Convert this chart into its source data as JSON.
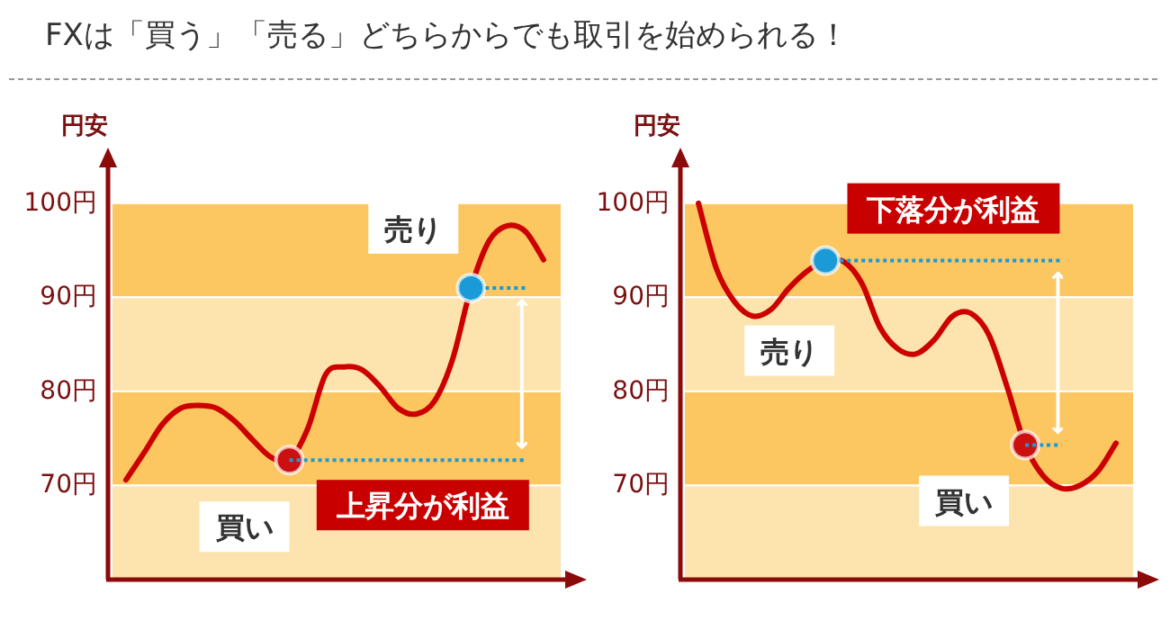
{
  "chart_data": [
    {
      "type": "line",
      "title": "FXは「買う」「売る」どちらからでも取引を始められる！",
      "ylabel": "円安",
      "tick_labels": "y",
      "categories": [
        null,
        null,
        null,
        null,
        null,
        null,
        null,
        null,
        null,
        null,
        null,
        null,
        null,
        null,
        null,
        null,
        null,
        null,
        null,
        null,
        null,
        null,
        null,
        null
      ],
      "ylim": [
        60,
        104
      ],
      "yticks": [
        {
          "value": 70,
          "label": "70円"
        },
        {
          "value": 80,
          "label": "80円"
        },
        {
          "value": 90,
          "label": "90円"
        },
        {
          "value": 100,
          "label": "100円"
        }
      ],
      "bands": [
        {
          "axis": "y",
          "from": 90,
          "to": 100,
          "color": "#fcc660"
        },
        {
          "axis": "y",
          "from": 80,
          "to": 90,
          "color": "#fde3ad"
        },
        {
          "axis": "y",
          "from": 70,
          "to": 80,
          "color": "#fcc660"
        },
        {
          "axis": "y",
          "from": 60,
          "to": 70,
          "color": "#fde3ad"
        }
      ],
      "series": [
        {
          "color": "#cc0000",
          "values": [
            70.6,
            73.5,
            76.5,
            78.2,
            78.5,
            78.2,
            76.8,
            74.8,
            73.0,
            72.7,
            76.0,
            81.8,
            82.6,
            82.3,
            80.5,
            78.2,
            77.6,
            79.0,
            83.5,
            91.0,
            96.0,
            97.6,
            97.0,
            94.0
          ]
        },
        {
          "type": "scatter",
          "color": "#cc1010",
          "values": [
            null,
            null,
            null,
            null,
            null,
            null,
            null,
            null,
            null,
            72.7,
            null,
            null,
            null,
            null,
            null,
            null,
            null,
            null,
            null,
            null,
            null,
            null,
            null,
            null
          ]
        },
        {
          "type": "scatter",
          "color": "#1a9ad6",
          "values": [
            null,
            null,
            null,
            null,
            null,
            null,
            null,
            null,
            null,
            null,
            null,
            null,
            null,
            null,
            null,
            null,
            null,
            null,
            null,
            91.0,
            null,
            null,
            null,
            null
          ]
        },
        {
          "type": "line",
          "line_style": "dotted",
          "color": "#1a9ad6",
          "values": [
            null,
            null,
            null,
            null,
            null,
            null,
            null,
            null,
            null,
            72.7,
            72.7,
            72.7,
            72.7,
            72.7,
            72.7,
            72.7,
            72.7,
            72.7,
            72.7,
            72.7,
            72.7,
            72.7,
            72.7,
            null
          ]
        },
        {
          "type": "line",
          "line_style": "dotted",
          "color": "#1a9ad6",
          "values": [
            null,
            null,
            null,
            null,
            null,
            null,
            null,
            null,
            null,
            null,
            null,
            null,
            null,
            null,
            null,
            null,
            null,
            null,
            null,
            91.0,
            91.0,
            91.0,
            91.0,
            null
          ]
        }
      ],
      "annotations": [
        "買い",
        "売り",
        "上昇分が利益"
      ]
    },
    {
      "type": "line",
      "ylabel": "円安",
      "tick_labels": "y",
      "categories": [
        null,
        null,
        null,
        null,
        null,
        null,
        null,
        null,
        null,
        null,
        null,
        null,
        null,
        null,
        null,
        null,
        null,
        null,
        null,
        null,
        null,
        null,
        null,
        null
      ],
      "ylim": [
        60,
        104
      ],
      "yticks": [
        {
          "value": 70,
          "label": "70円"
        },
        {
          "value": 80,
          "label": "80円"
        },
        {
          "value": 90,
          "label": "90円"
        },
        {
          "value": 100,
          "label": "100円"
        }
      ],
      "bands": [
        {
          "axis": "y",
          "from": 90,
          "to": 100,
          "color": "#fcc660"
        },
        {
          "axis": "y",
          "from": 80,
          "to": 90,
          "color": "#fde3ad"
        },
        {
          "axis": "y",
          "from": 70,
          "to": 80,
          "color": "#fcc660"
        },
        {
          "axis": "y",
          "from": 60,
          "to": 70,
          "color": "#fde3ad"
        }
      ],
      "series": [
        {
          "color": "#cc0000",
          "values": [
            100,
            93.0,
            89.5,
            88.0,
            88.7,
            91.0,
            92.8,
            93.9,
            93.8,
            91.5,
            86.8,
            84.5,
            84.0,
            85.5,
            88.0,
            88.3,
            86.0,
            80.5,
            74.3,
            71.0,
            69.7,
            70.0,
            71.5,
            74.5
          ]
        },
        {
          "type": "scatter",
          "color": "#1a9ad6",
          "values": [
            null,
            null,
            null,
            null,
            null,
            null,
            null,
            93.9,
            null,
            null,
            null,
            null,
            null,
            null,
            null,
            null,
            null,
            null,
            null,
            null,
            null,
            null,
            null,
            null
          ]
        },
        {
          "type": "scatter",
          "color": "#cc1010",
          "values": [
            null,
            null,
            null,
            null,
            null,
            null,
            null,
            null,
            null,
            null,
            null,
            null,
            null,
            null,
            null,
            null,
            null,
            null,
            74.3,
            null,
            null,
            null,
            null,
            null
          ]
        },
        {
          "type": "line",
          "line_style": "dotted",
          "color": "#1a9ad6",
          "values": [
            null,
            null,
            null,
            null,
            null,
            null,
            null,
            93.9,
            93.9,
            93.9,
            93.9,
            93.9,
            93.9,
            93.9,
            93.9,
            93.9,
            93.9,
            93.9,
            93.9,
            93.9,
            93.9,
            null,
            null,
            null
          ]
        },
        {
          "type": "line",
          "line_style": "dotted",
          "color": "#1a9ad6",
          "values": [
            null,
            null,
            null,
            null,
            null,
            null,
            null,
            null,
            null,
            null,
            null,
            null,
            null,
            null,
            null,
            null,
            null,
            null,
            74.3,
            74.3,
            74.3,
            null,
            null,
            null
          ]
        }
      ],
      "annotations": [
        "売り",
        "買い",
        "下落分が利益"
      ]
    }
  ]
}
